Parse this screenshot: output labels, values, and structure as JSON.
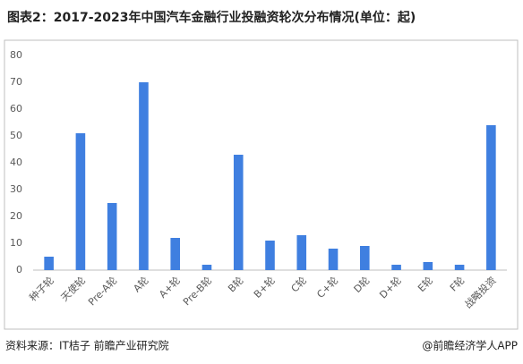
{
  "chart_data": {
    "type": "bar",
    "title": "图表2：2017-2023年中国汽车金融行业投融资轮次分布情况(单位：起)",
    "categories": [
      "种子轮",
      "天使轮",
      "Pre-A轮",
      "A轮",
      "A+轮",
      "Pre-B轮",
      "B轮",
      "B+轮",
      "C轮",
      "C+轮",
      "D轮",
      "D+轮",
      "E轮",
      "F轮",
      "战略投资"
    ],
    "values": [
      5,
      51,
      25,
      70,
      12,
      2,
      43,
      11,
      13,
      8,
      9,
      2,
      3,
      2,
      54
    ],
    "color": "#3f7fe0",
    "ylim": [
      0,
      80
    ],
    "yticks": [
      0,
      10,
      20,
      30,
      40,
      50,
      60,
      70,
      80
    ],
    "grid": false,
    "source": "资料来源：IT桔子 前瞻产业研究院",
    "credit": "@前瞻经济学人APP"
  }
}
